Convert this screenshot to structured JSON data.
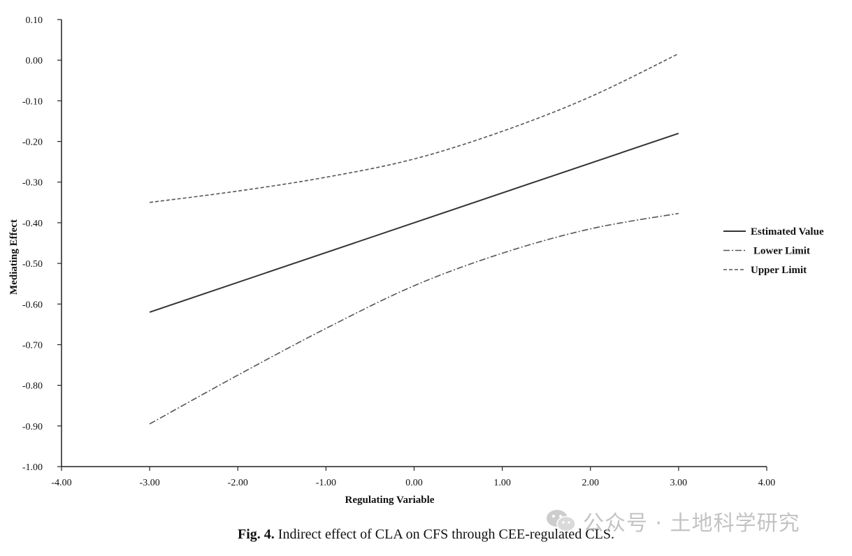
{
  "chart_data": {
    "type": "line",
    "title": "",
    "xlabel": "Regulating Variable",
    "ylabel": "Mediating Effect",
    "xlim": [
      -4,
      4
    ],
    "ylim": [
      -1,
      0.1
    ],
    "x_ticks": [
      "-4.00",
      "-3.00",
      "-2.00",
      "-1.00",
      "0.00",
      "1.00",
      "2.00",
      "3.00",
      "4.00"
    ],
    "y_ticks": [
      "0.10",
      "0.00",
      "-0.10",
      "-0.20",
      "-0.30",
      "-0.40",
      "-0.50",
      "-0.60",
      "-0.70",
      "-0.80",
      "-0.90",
      "-1.00"
    ],
    "grid": false,
    "legend_position": "right",
    "series": [
      {
        "name": "Estimated Value",
        "style": "solid",
        "color": "#333333",
        "x": [
          -3,
          3
        ],
        "y": [
          -0.62,
          -0.18
        ]
      },
      {
        "name": "Lower Limit",
        "style": "dashdot",
        "color": "#555555",
        "x": [
          -3,
          -2,
          -1,
          0,
          1,
          2,
          3
        ],
        "y": [
          -0.895,
          -0.775,
          -0.66,
          -0.555,
          -0.475,
          -0.415,
          -0.377
        ]
      },
      {
        "name": "Upper Limit",
        "style": "dashed",
        "color": "#555555",
        "x": [
          -3,
          -2,
          -1,
          0,
          1,
          2,
          3
        ],
        "y": [
          -0.35,
          -0.322,
          -0.288,
          -0.243,
          -0.175,
          -0.09,
          0.016
        ]
      }
    ]
  },
  "caption": {
    "label": "Fig. 4.",
    "text": "Indirect effect of CLA on CFS through CEE-regulated CLS."
  },
  "watermark": {
    "icon": "wechat-icon",
    "text": "公众号 · 土地科学研究"
  }
}
